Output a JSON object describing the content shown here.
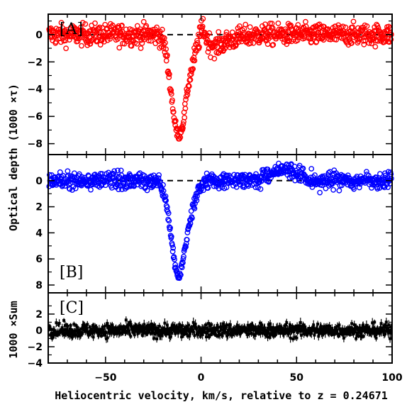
{
  "chart_data": {
    "type": "scatter",
    "xlabel": "Heliocentric velocity, km/s, relative to z = 0.24671",
    "ylabel_shared": "Optical depth (1000 ×τ)",
    "xlim": [
      -80,
      100
    ],
    "xticks": [
      -50,
      0,
      50,
      100
    ],
    "colors": {
      "A": "#ff0000",
      "B": "#0000ff",
      "C": "#000000"
    },
    "panels": [
      {
        "id": "A",
        "label": "[A]",
        "ylim": [
          1.5,
          -8.8
        ],
        "yticks": [
          {
            "v": -8,
            "t": "−8"
          },
          {
            "v": -6,
            "t": "−6"
          },
          {
            "v": -4,
            "t": "−4"
          },
          {
            "v": -2,
            "t": "−2"
          },
          {
            "v": 0,
            "t": "0"
          }
        ],
        "zero_line": true,
        "marker": "circle",
        "series": {
          "x": [
            -80,
            -70,
            -60,
            -50,
            -40,
            -30,
            -22,
            -19,
            -17,
            -15,
            -14,
            -13,
            -12,
            -11,
            -10,
            -9,
            -8,
            -7,
            -5,
            -3,
            -1,
            1,
            3,
            5,
            8,
            10,
            15,
            20,
            30,
            40,
            50,
            60,
            70,
            80,
            90,
            100
          ],
          "envelope": [
            0,
            0,
            0,
            0,
            0,
            0,
            0,
            -0.8,
            -2.8,
            -5.0,
            -6.2,
            -7.0,
            -7.3,
            -7.2,
            -6.8,
            -6.2,
            -5.0,
            -4.0,
            -2.6,
            -1.4,
            -0.3,
            0.6,
            -0.4,
            -0.7,
            -0.9,
            -0.7,
            -0.4,
            -0.2,
            0,
            0,
            0,
            0,
            0,
            0,
            0,
            0
          ],
          "noise": 0.55
        }
      },
      {
        "id": "B",
        "label": "[B]",
        "ylim": [
          -2.0,
          8.6
        ],
        "yticks": [
          {
            "v": 0,
            "t": "0"
          },
          {
            "v": 2,
            "t": "2"
          },
          {
            "v": 4,
            "t": "4"
          },
          {
            "v": 6,
            "t": "6"
          },
          {
            "v": 8,
            "t": "8"
          }
        ],
        "zero_line": true,
        "marker": "circle",
        "series": {
          "x": [
            -80,
            -60,
            -40,
            -30,
            -22,
            -19,
            -17,
            -15,
            -14,
            -13,
            -12,
            -11,
            -10,
            -8,
            -6,
            -4,
            -2,
            0,
            2,
            5,
            10,
            20,
            30,
            35,
            40,
            50,
            55,
            60,
            70,
            80,
            90,
            100
          ],
          "envelope": [
            0,
            0,
            0,
            0,
            0.2,
            1.2,
            3.0,
            5.0,
            6.2,
            7.0,
            7.3,
            7.2,
            6.5,
            4.8,
            3.2,
            2.0,
            1.0,
            0.4,
            0.1,
            0,
            0,
            0,
            -0.1,
            -0.4,
            -0.8,
            -0.6,
            -0.2,
            0,
            0,
            0,
            0,
            0
          ],
          "noise": 0.45
        }
      },
      {
        "id": "C",
        "label": "[C]",
        "ylim": [
          4.6,
          -4.0
        ],
        "yticks": [
          {
            "v": 2,
            "t": "2"
          },
          {
            "v": 0,
            "t": "0"
          },
          {
            "v": -2,
            "t": "−2"
          },
          {
            "v": -4,
            "t": "−4"
          }
        ],
        "zero_line": false,
        "ylabel": "1000 ×Sum",
        "marker": "errorbar",
        "series": {
          "x": [
            -80,
            100
          ],
          "envelope": [
            0,
            0
          ],
          "noise": 0.6
        }
      }
    ]
  }
}
